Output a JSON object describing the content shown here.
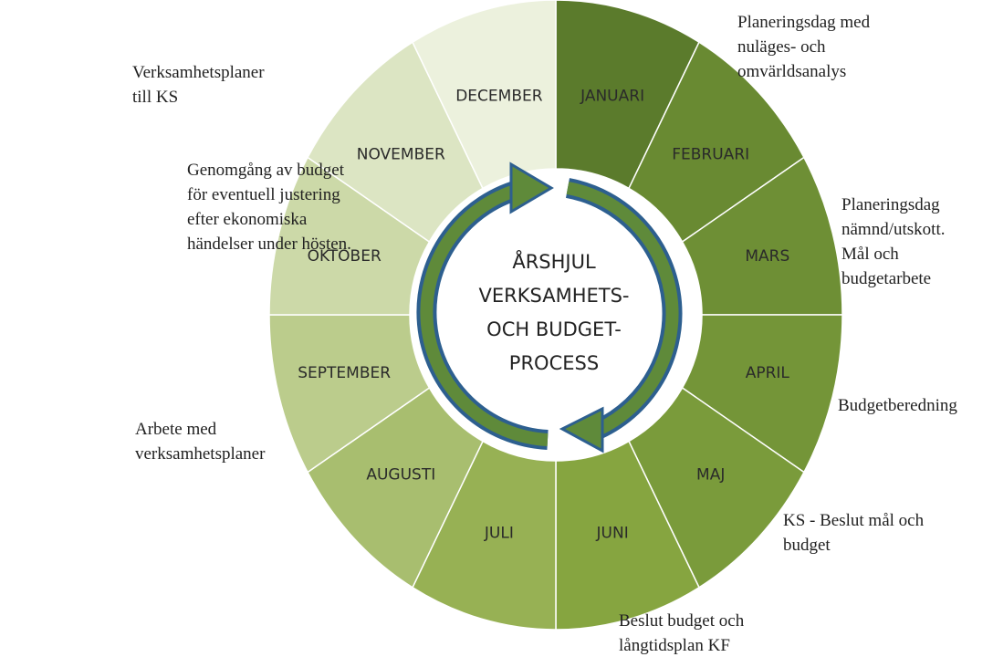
{
  "wheel": {
    "center_title": [
      "ÅRSHJUL",
      "VERKSAMHETS-",
      "OCH BUDGET-",
      "PROCESS"
    ],
    "months": [
      "JANUARI",
      "FEBRUARI",
      "MARS",
      "APRIL",
      "MAJ",
      "JUNI",
      "JULI",
      "AUGUSTI",
      "SEPTEMBER",
      "OKTOBER",
      "NOVEMBER",
      "DECEMBER"
    ],
    "colors": [
      "#5b7b2c",
      "#698a32",
      "#6e8f35",
      "#749538",
      "#7a9b3b",
      "#86a540",
      "#97b154",
      "#a8be6f",
      "#bbcc8c",
      "#ccd9a8",
      "#dce5c3",
      "#ecf1dd"
    ]
  },
  "annotations": [
    {
      "lines": [
        "Planeringsdag med",
        "nuläges- och",
        "omvärldsanalys"
      ]
    },
    {
      "lines": [
        "Verksamhetsplaner",
        "till KS"
      ]
    },
    {
      "lines": [
        "Genomgång av budget",
        "för eventuell justering",
        "efter ekonomiska",
        "händelser under hösten."
      ]
    },
    {
      "lines": [
        "Planeringsdag",
        "nämnd/utskott.",
        "Mål och",
        "budgetarbete"
      ]
    },
    {
      "lines": [
        "Budgetberedning"
      ]
    },
    {
      "lines": [
        "Arbete med",
        "verksamhetsplaner"
      ]
    },
    {
      "lines": [
        "KS - Beslut mål och",
        "budget"
      ]
    },
    {
      "lines": [
        "Beslut budget och",
        "långtidsplan KF"
      ]
    }
  ]
}
